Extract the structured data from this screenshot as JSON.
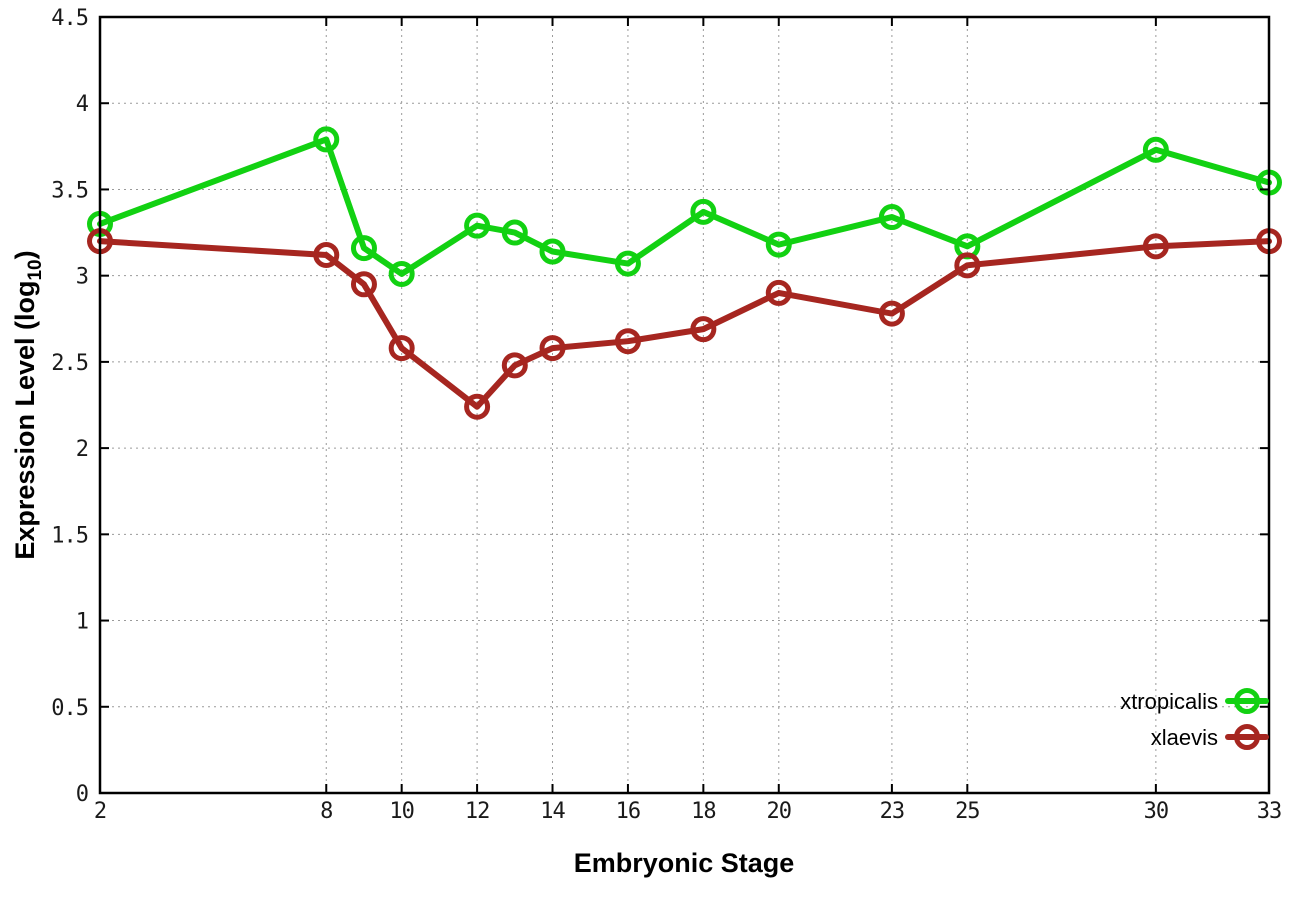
{
  "chart_data": {
    "type": "line",
    "title": "",
    "xlabel": "Embryonic Stage",
    "ylabel": "Expression Level (log10)",
    "ylabel_parts": {
      "main": "Expression Level (log",
      "sub": "10",
      "close": ")"
    },
    "x": [
      2,
      8,
      9,
      10,
      12,
      13,
      14,
      16,
      18,
      20,
      23,
      25,
      30,
      33
    ],
    "series": [
      {
        "name": "xtropicalis",
        "color": "#12d112",
        "values": [
          3.3,
          3.79,
          3.16,
          3.01,
          3.29,
          3.25,
          3.14,
          3.07,
          3.37,
          3.18,
          3.34,
          3.17,
          3.73,
          3.54
        ]
      },
      {
        "name": "xlaevis",
        "color": "#a62620",
        "values": [
          3.2,
          3.12,
          2.95,
          2.58,
          2.24,
          2.48,
          2.58,
          2.62,
          2.69,
          2.9,
          2.78,
          3.06,
          3.17,
          3.2
        ]
      }
    ],
    "xlim": [
      2,
      33
    ],
    "ylim": [
      0,
      4.5
    ],
    "x_tick_values": [
      2,
      8,
      10,
      12,
      14,
      16,
      18,
      20,
      23,
      25,
      30,
      33
    ],
    "x_tick_labels": [
      "2",
      "8",
      "10",
      "12",
      "14",
      "16",
      "18",
      "20",
      "23",
      "25",
      "30",
      "33"
    ],
    "y_tick_values": [
      0,
      0.5,
      1,
      1.5,
      2,
      2.5,
      3,
      3.5,
      4,
      4.5
    ],
    "y_tick_labels": [
      "0",
      "0.5",
      "1",
      "1.5",
      "2",
      "2.5",
      "3",
      "3.5",
      "4",
      "4.5"
    ],
    "grid": true,
    "legend_position": "bottom-right",
    "marker": "open-circle"
  },
  "styles": {
    "background": "#ffffff",
    "border_color": "#000000",
    "grid_color": "#9a9a9a",
    "text_color": "#1a1a1a",
    "green_series": "#12d112",
    "red_series": "#a62620"
  }
}
